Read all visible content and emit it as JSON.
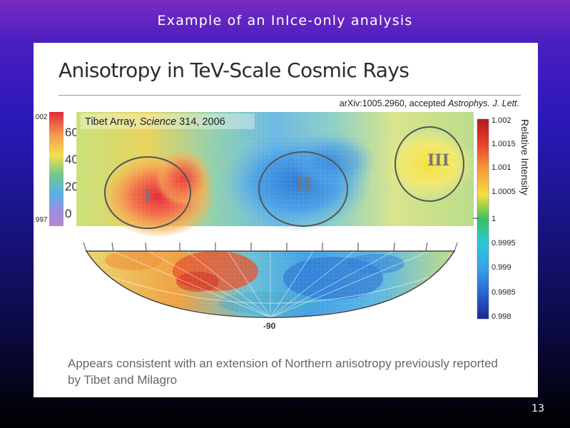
{
  "slide": {
    "title": "Example of an InIce-only analysis",
    "page_number": "13"
  },
  "panel": {
    "heading": "Anisotropy in TeV-Scale Cosmic Rays",
    "citation_prefix": "arXiv:1005.2960, accepted ",
    "citation_journal": "Astrophys. J. Lett.",
    "caption": "Appears consistent with an extension of Northern anisotropy previously reported by Tibet and Milagro"
  },
  "tibet_map": {
    "label_prefix": "Tibet Array, ",
    "label_journal": "Science",
    "label_suffix": " 314, 2006",
    "left_scale_ticks": [
      "60",
      "40",
      "20",
      "0"
    ],
    "left_scale_top": ".002",
    "left_scale_bottom": ".997",
    "regions": [
      "I",
      "II",
      "III"
    ]
  },
  "icecube_map": {
    "axis_label": "-90"
  },
  "colorbar": {
    "title": "Relative Intensity",
    "ticks": [
      "1.002",
      "1.0015",
      "1.001",
      "1.0005",
      "1",
      "0.9995",
      "0.999",
      "0.9985",
      "0.998"
    ]
  }
}
